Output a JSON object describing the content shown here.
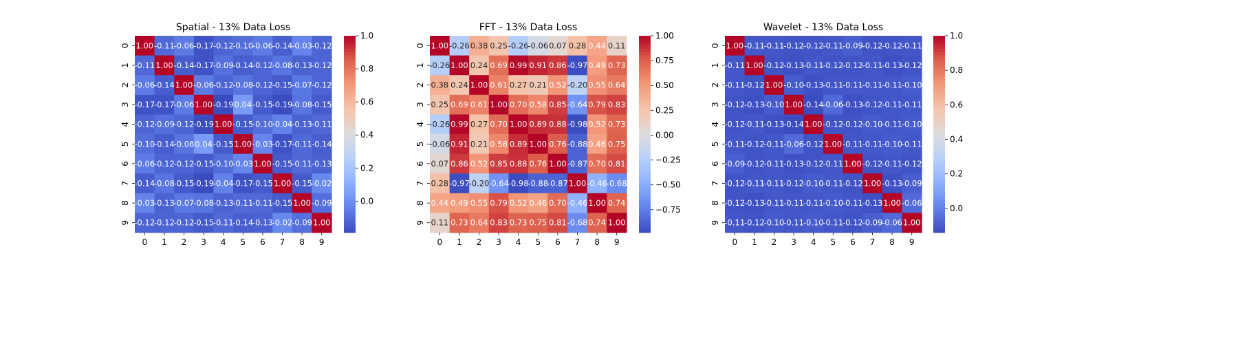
{
  "chart_data": [
    {
      "type": "heatmap",
      "title": "Spatial - 13% Data Loss",
      "x_tick_labels": [
        "0",
        "1",
        "2",
        "3",
        "4",
        "5",
        "6",
        "7",
        "8",
        "9"
      ],
      "y_tick_labels": [
        "0",
        "1",
        "2",
        "3",
        "4",
        "5",
        "6",
        "7",
        "8",
        "9"
      ],
      "values": [
        [
          1.0,
          -0.11,
          -0.06,
          -0.17,
          -0.12,
          -0.1,
          -0.06,
          -0.14,
          -0.03,
          -0.12
        ],
        [
          -0.11,
          1.0,
          -0.14,
          -0.17,
          -0.09,
          -0.14,
          -0.12,
          -0.08,
          -0.13,
          -0.12
        ],
        [
          -0.06,
          -0.14,
          1.0,
          -0.06,
          -0.12,
          -0.08,
          -0.12,
          -0.15,
          -0.07,
          -0.12
        ],
        [
          -0.17,
          -0.17,
          -0.06,
          1.0,
          -0.19,
          0.04,
          -0.15,
          -0.19,
          -0.08,
          -0.15
        ],
        [
          -0.12,
          -0.09,
          -0.12,
          -0.19,
          1.0,
          -0.15,
          -0.1,
          -0.04,
          -0.13,
          -0.11
        ],
        [
          -0.1,
          -0.14,
          -0.08,
          0.04,
          -0.15,
          1.0,
          -0.03,
          -0.17,
          -0.11,
          -0.14
        ],
        [
          -0.06,
          -0.12,
          -0.12,
          -0.15,
          -0.1,
          -0.03,
          1.0,
          -0.15,
          -0.11,
          -0.13
        ],
        [
          -0.14,
          -0.08,
          -0.15,
          -0.19,
          -0.04,
          -0.17,
          -0.15,
          1.0,
          -0.15,
          -0.02
        ],
        [
          -0.03,
          -0.13,
          -0.07,
          -0.08,
          -0.13,
          -0.11,
          -0.11,
          -0.15,
          1.0,
          -0.09
        ],
        [
          -0.12,
          -0.12,
          -0.12,
          -0.15,
          -0.11,
          -0.14,
          -0.13,
          -0.02,
          -0.09,
          1.0
        ]
      ],
      "vmin": -0.19,
      "vmax": 1.0,
      "colormap": "coolwarm",
      "colorbar_ticks": [
        "0.0",
        "0.2",
        "0.4",
        "0.6",
        "0.8",
        "1.0"
      ],
      "colorbar_tick_values": [
        0.0,
        0.2,
        0.4,
        0.6,
        0.8,
        1.0
      ]
    },
    {
      "type": "heatmap",
      "title": "FFT - 13% Data Loss",
      "x_tick_labels": [
        "0",
        "1",
        "2",
        "3",
        "4",
        "5",
        "6",
        "7",
        "8",
        "9"
      ],
      "y_tick_labels": [
        "0",
        "1",
        "2",
        "3",
        "4",
        "5",
        "6",
        "7",
        "8",
        "9"
      ],
      "values": [
        [
          1.0,
          -0.26,
          0.38,
          0.25,
          -0.26,
          -0.06,
          0.07,
          0.28,
          0.44,
          0.11
        ],
        [
          -0.26,
          1.0,
          0.24,
          0.69,
          0.99,
          0.91,
          0.86,
          -0.97,
          0.49,
          0.73
        ],
        [
          0.38,
          0.24,
          1.0,
          0.61,
          0.27,
          0.21,
          0.52,
          -0.2,
          0.55,
          0.64
        ],
        [
          0.25,
          0.69,
          0.61,
          1.0,
          0.7,
          0.58,
          0.85,
          -0.64,
          0.79,
          0.83
        ],
        [
          -0.26,
          0.99,
          0.27,
          0.7,
          1.0,
          0.89,
          0.88,
          -0.98,
          0.52,
          0.73
        ],
        [
          -0.06,
          0.91,
          0.21,
          0.58,
          0.89,
          1.0,
          0.76,
          -0.88,
          0.46,
          0.75
        ],
        [
          0.07,
          0.86,
          0.52,
          0.85,
          0.88,
          0.76,
          1.0,
          -0.87,
          0.7,
          0.81
        ],
        [
          0.28,
          -0.97,
          -0.2,
          -0.64,
          -0.98,
          -0.88,
          -0.87,
          1.0,
          -0.46,
          -0.68
        ],
        [
          0.44,
          0.49,
          0.55,
          0.79,
          0.52,
          0.46,
          0.7,
          -0.46,
          1.0,
          0.74
        ],
        [
          0.11,
          0.73,
          0.64,
          0.83,
          0.73,
          0.75,
          0.81,
          -0.68,
          0.74,
          1.0
        ]
      ],
      "vmin": -0.98,
      "vmax": 1.0,
      "colormap": "coolwarm",
      "colorbar_ticks": [
        "−0.75",
        "−0.50",
        "−0.25",
        "0.00",
        "0.25",
        "0.50",
        "0.75",
        "1.00"
      ],
      "colorbar_tick_values": [
        -0.75,
        -0.5,
        -0.25,
        0.0,
        0.25,
        0.5,
        0.75,
        1.0
      ]
    },
    {
      "type": "heatmap",
      "title": "Wavelet - 13% Data Loss",
      "x_tick_labels": [
        "0",
        "1",
        "2",
        "3",
        "4",
        "5",
        "6",
        "7",
        "8",
        "9"
      ],
      "y_tick_labels": [
        "0",
        "1",
        "2",
        "3",
        "4",
        "5",
        "6",
        "7",
        "8",
        "9"
      ],
      "values": [
        [
          1.0,
          -0.11,
          -0.11,
          -0.12,
          -0.12,
          -0.11,
          -0.09,
          -0.12,
          -0.12,
          -0.11
        ],
        [
          -0.11,
          1.0,
          -0.12,
          -0.13,
          -0.11,
          -0.12,
          -0.12,
          -0.11,
          -0.13,
          -0.12
        ],
        [
          -0.11,
          -0.12,
          1.0,
          -0.1,
          -0.13,
          -0.11,
          -0.11,
          -0.11,
          -0.11,
          -0.1
        ],
        [
          -0.12,
          -0.13,
          -0.1,
          1.0,
          -0.14,
          -0.06,
          -0.13,
          -0.12,
          -0.11,
          -0.11
        ],
        [
          -0.12,
          -0.11,
          -0.13,
          -0.14,
          1.0,
          -0.12,
          -0.12,
          -0.1,
          -0.11,
          -0.1
        ],
        [
          -0.11,
          -0.12,
          -0.11,
          -0.06,
          -0.12,
          1.0,
          -0.11,
          -0.11,
          -0.1,
          -0.11
        ],
        [
          -0.09,
          -0.12,
          -0.11,
          -0.13,
          -0.12,
          -0.11,
          1.0,
          -0.12,
          -0.11,
          -0.12
        ],
        [
          -0.12,
          -0.11,
          -0.11,
          -0.12,
          -0.1,
          -0.11,
          -0.12,
          1.0,
          -0.13,
          -0.09
        ],
        [
          -0.12,
          -0.13,
          -0.11,
          -0.11,
          -0.11,
          -0.1,
          -0.11,
          -0.13,
          1.0,
          -0.06
        ],
        [
          -0.11,
          -0.12,
          -0.1,
          -0.11,
          -0.1,
          -0.11,
          -0.12,
          -0.09,
          -0.06,
          1.0
        ]
      ],
      "vmin": -0.14,
      "vmax": 1.0,
      "colormap": "coolwarm",
      "colorbar_ticks": [
        "0.0",
        "0.2",
        "0.4",
        "0.6",
        "0.8",
        "1.0"
      ],
      "colorbar_tick_values": [
        0.0,
        0.2,
        0.4,
        0.6,
        0.8,
        1.0
      ]
    }
  ]
}
